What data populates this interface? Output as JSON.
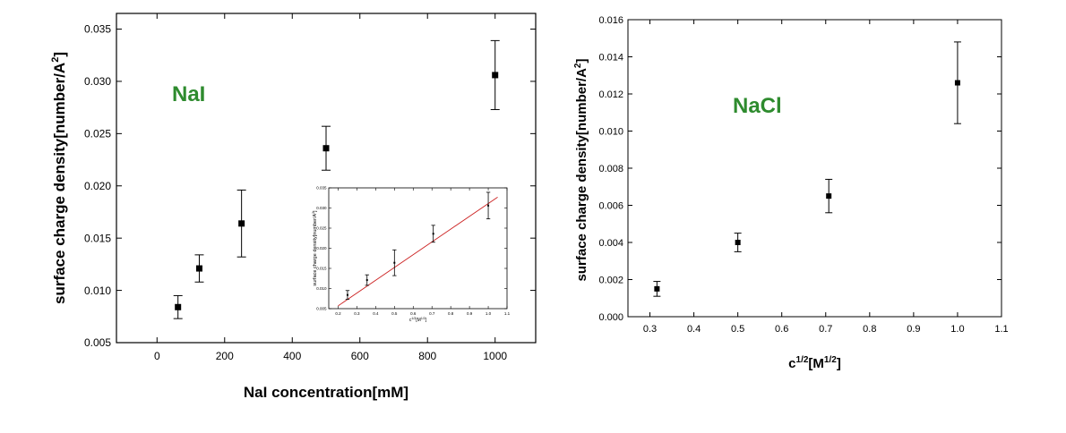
{
  "chart_data": [
    {
      "type": "scatter",
      "title": "",
      "annotation": "NaI",
      "annotation_color": "#2e8b2e",
      "xlabel": "NaI concentration[mM]",
      "ylabel": "surface charge density[number/A",
      "ylabel_sup": "2",
      "ylabel_tail": "]",
      "xlim": [
        -120,
        1120
      ],
      "ylim": [
        0.005,
        0.0365
      ],
      "xticks": [
        0,
        200,
        400,
        600,
        800,
        1000
      ],
      "xtick_labels": [
        "0",
        "200",
        "400",
        "600",
        "800",
        "1000"
      ],
      "yticks": [
        0.005,
        0.01,
        0.015,
        0.02,
        0.025,
        0.03,
        0.035
      ],
      "ytick_labels": [
        "0.005",
        "0.010",
        "0.015",
        "0.020",
        "0.025",
        "0.030",
        "0.035"
      ],
      "series": [
        {
          "x": [
            62,
            125,
            250,
            500,
            1000
          ],
          "y": [
            0.0084,
            0.0121,
            0.0164,
            0.0236,
            0.0306
          ],
          "err": [
            0.0011,
            0.0013,
            0.0032,
            0.0021,
            0.0033
          ]
        }
      ],
      "inset": {
        "type": "scatter",
        "xlabel": "c",
        "xlabel_sup": "1/2",
        "xlabel_tail": "[M",
        "xlabel_sup2": "1/2",
        "xlabel_end": "]",
        "ylabel": "surface charge density[number/A",
        "ylabel_sup": "2",
        "ylabel_tail": "]",
        "xlim": [
          0.15,
          1.1
        ],
        "ylim": [
          0.005,
          0.035
        ],
        "xticks": [
          0.2,
          0.3,
          0.4,
          0.5,
          0.6,
          0.7,
          0.8,
          0.9,
          1.0,
          1.1
        ],
        "xtick_labels": [
          "0.2",
          "0.3",
          "0.4",
          "0.5",
          "0.6",
          "0.7",
          "0.8",
          "0.9",
          "1.0",
          "1.1"
        ],
        "yticks": [
          0.005,
          0.01,
          0.015,
          0.02,
          0.025,
          0.03,
          0.035
        ],
        "ytick_labels": [
          "0.005",
          "0.010",
          "0.015",
          "0.020",
          "0.025",
          "0.030",
          "0.035"
        ],
        "series": [
          {
            "x": [
              0.25,
              0.354,
              0.5,
              0.707,
              1.0
            ],
            "y": [
              0.0084,
              0.0121,
              0.0164,
              0.0236,
              0.0306
            ],
            "err": [
              0.0011,
              0.0013,
              0.0032,
              0.0021,
              0.0033
            ]
          }
        ],
        "fit_line": {
          "x": [
            0.2,
            1.05
          ],
          "y": [
            0.0057,
            0.0327
          ],
          "color": "#cc2222"
        }
      }
    },
    {
      "type": "scatter",
      "title": "",
      "annotation": "NaCl",
      "annotation_color": "#2e8b2e",
      "xlabel": "c",
      "xlabel_sup": "1/2",
      "xlabel_tail": "[M",
      "xlabel_sup2": "1/2",
      "xlabel_end": "]",
      "ylabel": "surface charge density[number/A",
      "ylabel_sup": "2",
      "ylabel_tail": "]",
      "xlim": [
        0.25,
        1.1
      ],
      "ylim": [
        0.0,
        0.016
      ],
      "xticks": [
        0.3,
        0.4,
        0.5,
        0.6,
        0.7,
        0.8,
        0.9,
        1.0,
        1.1
      ],
      "xtick_labels": [
        "0.3",
        "0.4",
        "0.5",
        "0.6",
        "0.7",
        "0.8",
        "0.9",
        "1.0",
        "1.1"
      ],
      "yticks": [
        0.0,
        0.002,
        0.004,
        0.006,
        0.008,
        0.01,
        0.012,
        0.014,
        0.016
      ],
      "ytick_labels": [
        "0.000",
        "0.002",
        "0.004",
        "0.006",
        "0.008",
        "0.010",
        "0.012",
        "0.014",
        "0.016"
      ],
      "series": [
        {
          "x": [
            0.316,
            0.5,
            0.707,
            1.0
          ],
          "y": [
            0.0015,
            0.004,
            0.0065,
            0.0126
          ],
          "err": [
            0.0004,
            0.0005,
            0.0009,
            0.0022
          ]
        }
      ]
    }
  ]
}
